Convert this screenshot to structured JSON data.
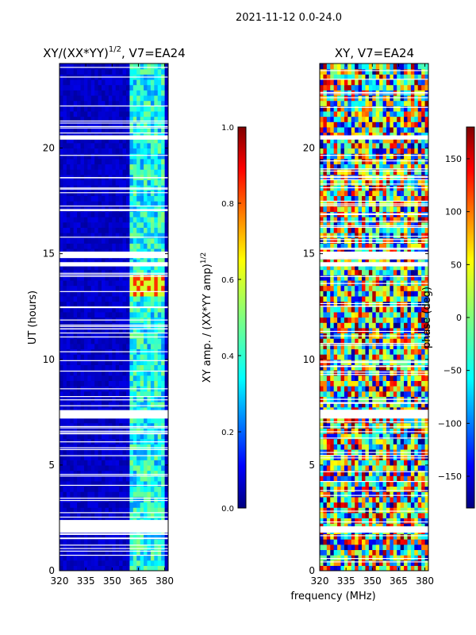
{
  "suptitle": "2021-11-12 0.0-24.0",
  "shared_xlabel": "frequency (MHz)",
  "colors": {
    "jet": [
      "#00007f",
      "#0000ff",
      "#007fff",
      "#00ffff",
      "#7fff7f",
      "#ffff00",
      "#ff7f00",
      "#ff0000",
      "#7f0000"
    ],
    "axis": "#000000",
    "gap": "#ffffff"
  },
  "chart_data": [
    {
      "type": "heatmap",
      "id": "amp",
      "title_main": "XY/(XX*YY)",
      "title_sup": "1/2",
      "title_tail": ", V7=EA24",
      "xlabel": "",
      "ylabel": "UT (hours)",
      "xlim": [
        320,
        382
      ],
      "ylim": [
        0,
        24
      ],
      "xticks": [
        320,
        335,
        350,
        365,
        380
      ],
      "yticks": [
        0,
        5,
        10,
        15,
        20
      ],
      "colorbar": {
        "label_main": "XY amp. / (XX*YY amp)",
        "label_sup": "1/2",
        "range": [
          0.0,
          1.0
        ],
        "ticks": [
          0.0,
          0.2,
          0.4,
          0.6,
          0.8,
          1.0
        ],
        "tick_labels": [
          "0.0",
          "0.2",
          "0.4",
          "0.6",
          "0.8",
          "1.0"
        ]
      },
      "bright_band_mhz": [
        359,
        378
      ],
      "gaps_hours": [
        [
          1.8,
          2.4
        ],
        [
          7.2,
          7.6
        ],
        [
          14.4,
          14.6
        ],
        [
          14.8,
          15.1
        ],
        [
          20.4,
          20.6
        ]
      ]
    },
    {
      "type": "heatmap",
      "id": "phase",
      "title_main": "XY, V7=EA24",
      "xlabel": "",
      "ylabel": "",
      "xlim": [
        320,
        382
      ],
      "ylim": [
        0,
        24
      ],
      "xticks": [
        320,
        335,
        350,
        365,
        380
      ],
      "yticks": [
        0,
        5,
        10,
        15,
        20
      ],
      "colorbar": {
        "label_main": "phase (deg)",
        "range": [
          -180,
          180
        ],
        "ticks": [
          -150,
          -100,
          -50,
          0,
          50,
          100,
          150
        ],
        "tick_labels": [
          "−150",
          "−100",
          "−50",
          "0",
          "50",
          "100",
          "150"
        ]
      },
      "gaps_hours": [
        [
          1.8,
          2.1
        ],
        [
          7.2,
          7.6
        ],
        [
          14.4,
          14.6
        ],
        [
          14.8,
          15.1
        ],
        [
          20.4,
          20.6
        ]
      ]
    }
  ]
}
